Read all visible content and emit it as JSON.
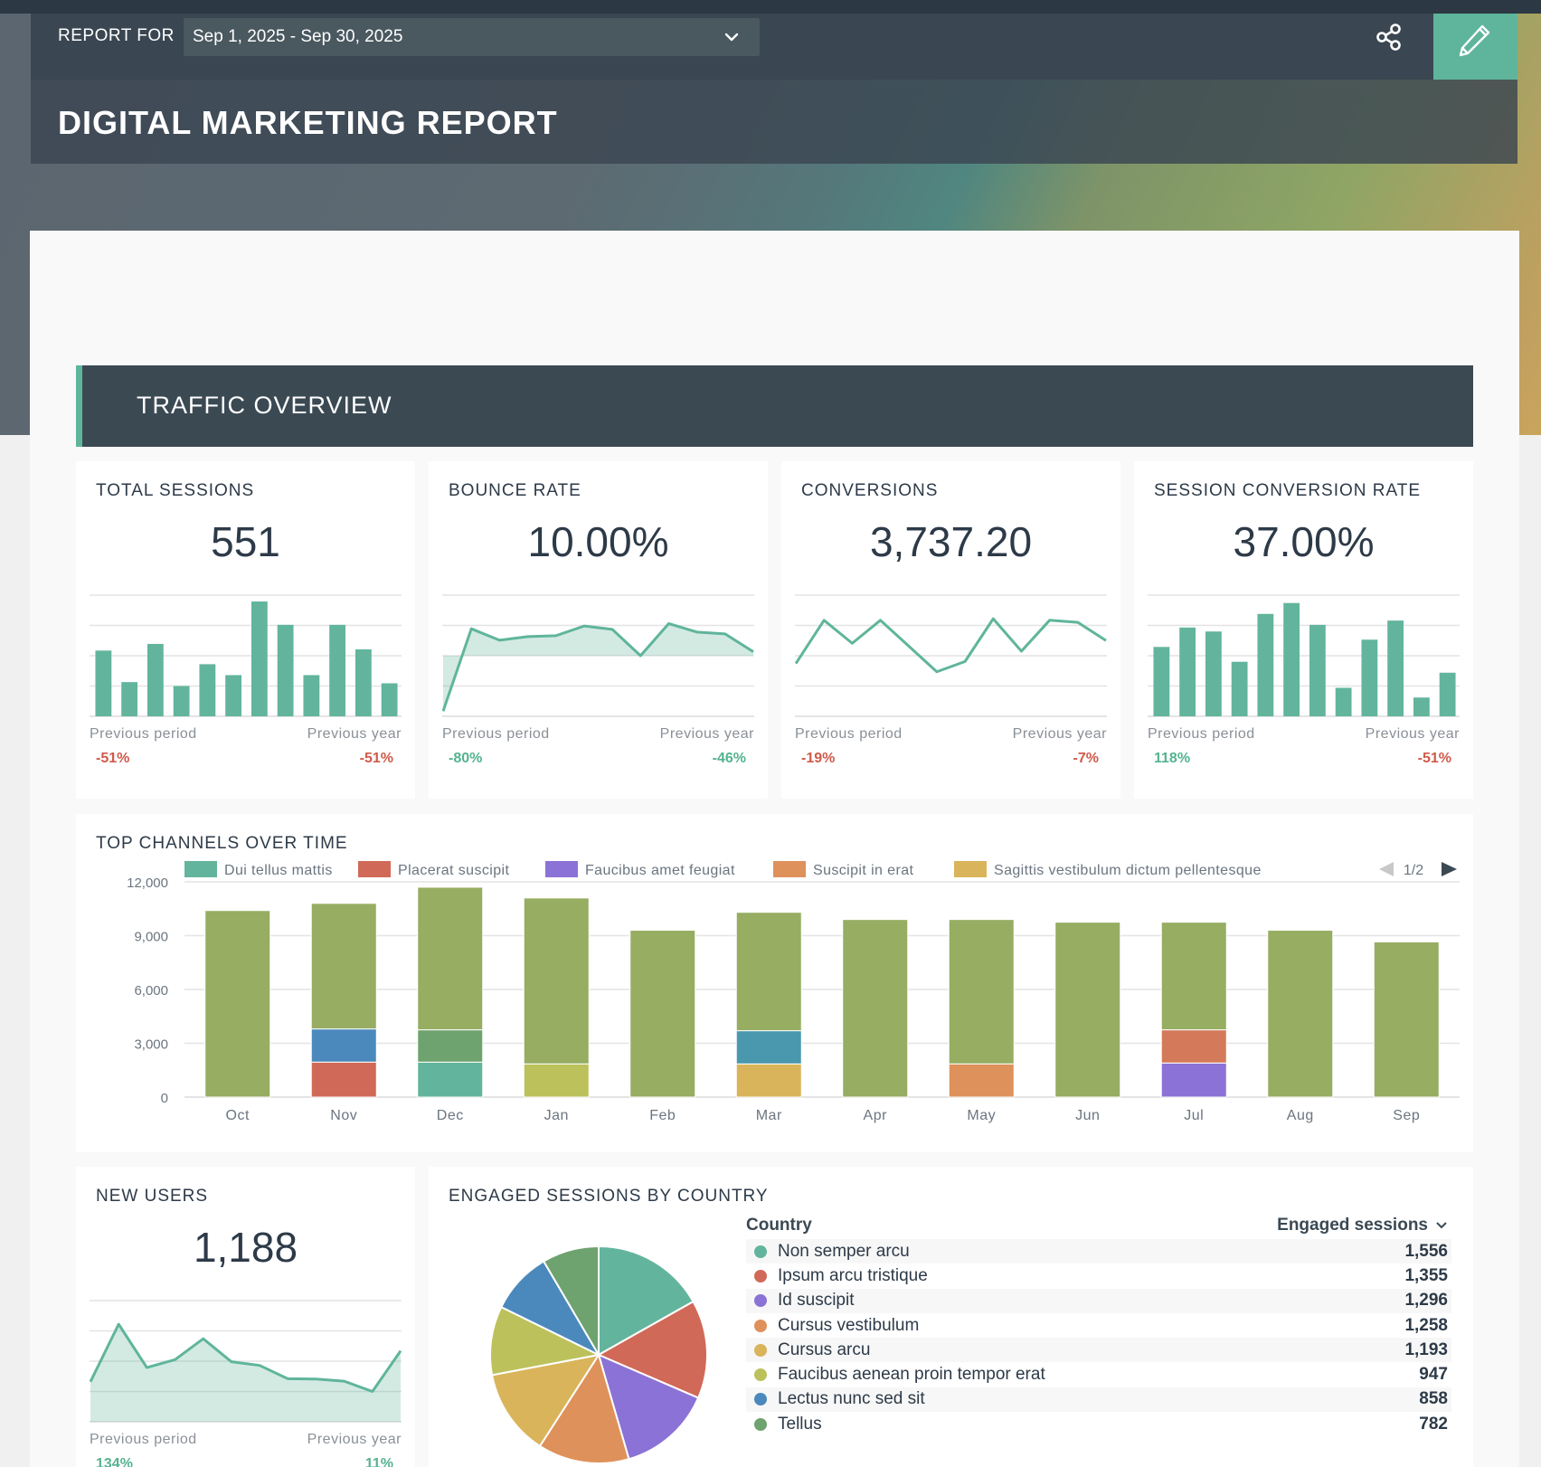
{
  "header": {
    "report_for_label": "REPORT FOR",
    "date_range": "Sep 1, 2025 - Sep 30, 2025",
    "title": "DIGITAL MARKETING REPORT",
    "share_icon": "share-icon",
    "edit_icon": "pencil-icon"
  },
  "colors": {
    "accent": "#5fb59b",
    "negative": "#d05a4b",
    "positive": "#55b38f",
    "dark": "#3b4953"
  },
  "section": {
    "title": "TRAFFIC OVERVIEW"
  },
  "kpis": [
    {
      "title": "TOTAL SESSIONS",
      "value": "551",
      "prev_period_label": "Previous period",
      "prev_period": "-51%",
      "prev_period_trend": "neg",
      "prev_year_label": "Previous year",
      "prev_year": "-51%",
      "prev_year_trend": "neg",
      "spark_type": "bar",
      "spark": [
        2.17,
        1.13,
        2.39,
        1.0,
        1.72,
        1.36,
        3.79,
        3.02,
        1.36,
        3.02,
        2.21,
        1.09
      ]
    },
    {
      "title": "BOUNCE RATE",
      "value": "10.00%",
      "prev_period_label": "Previous period",
      "prev_period": "-80%",
      "prev_period_trend": "pos",
      "prev_year_label": "Previous year",
      "prev_year": "-46%",
      "prev_year_trend": "pos",
      "spark_type": "area-baseline",
      "spark": [
        0.17,
        2.89,
        2.51,
        2.63,
        2.66,
        2.98,
        2.87,
        2.0,
        3.06,
        2.78,
        2.72,
        2.13
      ]
    },
    {
      "title": "CONVERSIONS",
      "value": "3,737.20",
      "prev_period_label": "Previous period",
      "prev_period": "-19%",
      "prev_period_trend": "neg",
      "prev_year_label": "Previous year",
      "prev_year": "-7%",
      "prev_year_trend": "neg",
      "spark_type": "line",
      "spark": [
        1.74,
        3.17,
        2.41,
        3.17,
        2.32,
        1.47,
        1.81,
        3.22,
        2.15,
        3.17,
        3.1,
        2.5
      ]
    },
    {
      "title": "SESSION CONVERSION RATE",
      "value": "37.00%",
      "prev_period_label": "Previous period",
      "prev_period": "118%",
      "prev_period_trend": "pos",
      "prev_year_label": "Previous year",
      "prev_year": "-51%",
      "prev_year_trend": "neg",
      "spark_type": "bar",
      "spark": [
        2.29,
        2.93,
        2.8,
        1.8,
        3.38,
        3.74,
        3.02,
        0.94,
        2.53,
        3.16,
        0.62,
        1.44
      ]
    }
  ],
  "new_users": {
    "title": "NEW USERS",
    "value": "1,188",
    "prev_period_label": "Previous period",
    "prev_period": "134%",
    "prev_period_trend": "pos",
    "prev_year_label": "Previous year",
    "prev_year": "11%",
    "prev_year_trend": "pos",
    "spark_type": "area",
    "spark": [
      1.32,
      3.22,
      1.79,
      2.05,
      2.74,
      1.98,
      1.86,
      1.42,
      1.41,
      1.34,
      1.0,
      2.34
    ]
  },
  "chart_data": [
    {
      "type": "bar",
      "stacked": true,
      "title": "TOP CHANNELS OVER TIME",
      "categories": [
        "Oct",
        "Nov",
        "Dec",
        "Jan",
        "Feb",
        "Mar",
        "Apr",
        "May",
        "Jun",
        "Jul",
        "Aug",
        "Sep"
      ],
      "ylim": [
        0,
        12000
      ],
      "yticks": [
        "0",
        "3,000",
        "6,000",
        "9,000",
        "12,000"
      ],
      "ytick_values": [
        0,
        3000,
        6000,
        9000,
        12000
      ],
      "legend": {
        "items": [
          {
            "name": "Dui tellus mattis",
            "color": "#62b59c"
          },
          {
            "name": "Placerat suscipit",
            "color": "#d16958"
          },
          {
            "name": "Faucibus amet feugiat",
            "color": "#8b72d6"
          },
          {
            "name": "Suscipit in erat",
            "color": "#de915a"
          },
          {
            "name": "Sagittis vestibulum dictum pellentesque",
            "color": "#d9b45a"
          }
        ],
        "page": "1/2",
        "placement": "top"
      },
      "stacks": [
        [
          {
            "value": 10400,
            "color": "#96ad62"
          }
        ],
        [
          {
            "value": 1950,
            "color": "#d16958"
          },
          {
            "value": 1850,
            "color": "#4b89bd"
          },
          {
            "value": 7000,
            "color": "#96ad62"
          }
        ],
        [
          {
            "value": 1950,
            "color": "#62b59c"
          },
          {
            "value": 1800,
            "color": "#6ea26e"
          },
          {
            "value": 7950,
            "color": "#96ad62"
          }
        ],
        [
          {
            "value": 1850,
            "color": "#bcc15c"
          },
          {
            "value": 9250,
            "color": "#96ad62"
          }
        ],
        [
          {
            "value": 9300,
            "color": "#96ad62"
          }
        ],
        [
          {
            "value": 1850,
            "color": "#d9b45a"
          },
          {
            "value": 1850,
            "color": "#4a98ad"
          },
          {
            "value": 6600,
            "color": "#96ad62"
          }
        ],
        [
          {
            "value": 9900,
            "color": "#96ad62"
          }
        ],
        [
          {
            "value": 1850,
            "color": "#de915a"
          },
          {
            "value": 8050,
            "color": "#96ad62"
          }
        ],
        [
          {
            "value": 9750,
            "color": "#96ad62"
          }
        ],
        [
          {
            "value": 1900,
            "color": "#8b72d6"
          },
          {
            "value": 1850,
            "color": "#d47a5a"
          },
          {
            "value": 6000,
            "color": "#96ad62"
          }
        ],
        [
          {
            "value": 9300,
            "color": "#96ad62"
          }
        ],
        [
          {
            "value": 8650,
            "color": "#96ad62"
          }
        ]
      ]
    },
    {
      "type": "pie",
      "title": "ENGAGED SESSIONS BY COUNTRY",
      "column_headers": [
        "Country",
        "Engaged sessions"
      ],
      "slices": [
        {
          "label": "Non semper arcu",
          "value": 1556,
          "display": "1,556",
          "color": "#62b59c"
        },
        {
          "label": "Ipsum arcu tristique",
          "value": 1355,
          "display": "1,355",
          "color": "#d16958"
        },
        {
          "label": "Id suscipit",
          "value": 1296,
          "display": "1,296",
          "color": "#8b72d6"
        },
        {
          "label": "Cursus vestibulum",
          "value": 1258,
          "display": "1,258",
          "color": "#de915a"
        },
        {
          "label": "Cursus arcu",
          "value": 1193,
          "display": "1,193",
          "color": "#d9b45a"
        },
        {
          "label": "Faucibus aenean proin tempor erat",
          "value": 947,
          "display": "947",
          "color": "#bcc15c"
        },
        {
          "label": "Lectus nunc sed sit",
          "value": 858,
          "display": "858",
          "color": "#4b89bd"
        },
        {
          "label": "Tellus",
          "value": 782,
          "display": "782",
          "color": "#6ea26e"
        }
      ]
    }
  ]
}
